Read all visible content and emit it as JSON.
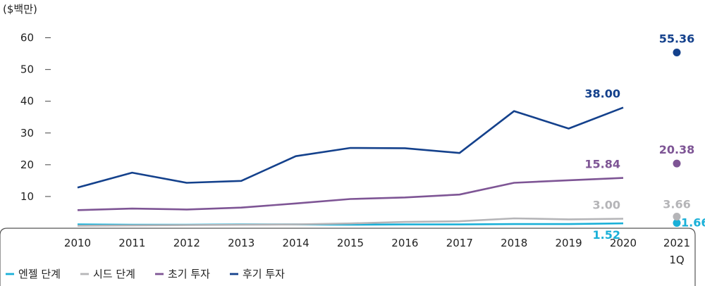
{
  "chart_data": {
    "type": "line",
    "unit_label": "($백만)",
    "categories": [
      "2010",
      "2011",
      "2012",
      "2013",
      "2014",
      "2015",
      "2016",
      "2017",
      "2018",
      "2019",
      "2020"
    ],
    "extra_category": {
      "line1": "2021",
      "line2": "1Q"
    },
    "yticks": [
      "10",
      "20",
      "30",
      "40",
      "50",
      "60"
    ],
    "ylim": [
      0,
      65
    ],
    "series": [
      {
        "name": "엔젤 단계",
        "color": "#1ab0d8",
        "values": [
          1.2,
          1.1,
          1.1,
          1.2,
          1.2,
          1.1,
          1.2,
          1.2,
          1.3,
          1.3,
          1.52
        ],
        "q1_2021": 1.66,
        "end_label": "1.52",
        "q1_label": "1.66"
      },
      {
        "name": "시드 단계",
        "color": "#b5b5b8",
        "values": [
          0.8,
          0.9,
          1.0,
          1.1,
          1.2,
          1.5,
          2.0,
          2.2,
          3.1,
          2.8,
          3.0
        ],
        "q1_2021": 3.66,
        "end_label": "3.00",
        "q1_label": "3.66"
      },
      {
        "name": "초기 투자",
        "color": "#7e5595",
        "values": [
          5.7,
          6.2,
          5.9,
          6.5,
          7.8,
          9.2,
          9.7,
          10.6,
          14.3,
          15.1,
          15.84
        ],
        "q1_2021": 20.38,
        "end_label": "15.84",
        "q1_label": "20.38"
      },
      {
        "name": "후기 투자",
        "color": "#14418c",
        "values": [
          12.8,
          17.5,
          14.3,
          14.9,
          22.7,
          25.3,
          25.2,
          23.7,
          36.9,
          31.4,
          38.0
        ],
        "q1_2021": 55.36,
        "end_label": "38.00",
        "q1_label": "55.36"
      }
    ],
    "grid": false,
    "legend_position": "bottom-left"
  }
}
